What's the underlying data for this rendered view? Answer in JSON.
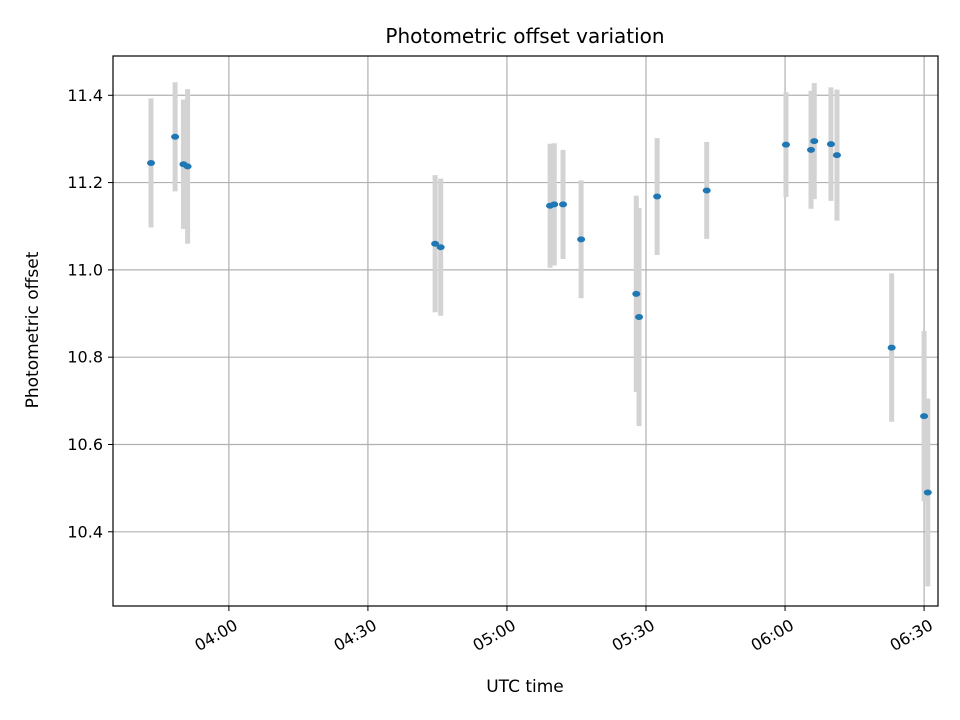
{
  "chart_data": {
    "type": "scatter",
    "title": "Photometric offset variation",
    "xlabel": "UTC time",
    "ylabel": "Photometric offset",
    "x_tick_labels": [
      "04:00",
      "04:30",
      "05:00",
      "05:30",
      "06:00",
      "06:30"
    ],
    "x_tick_minutes": [
      240,
      270,
      300,
      330,
      360,
      390
    ],
    "y_ticks": [
      10.4,
      10.6,
      10.8,
      11.0,
      11.2,
      11.4
    ],
    "xlim_minutes": [
      215,
      393
    ],
    "ylim": [
      10.23,
      11.49
    ],
    "grid": true,
    "marker_color": "#1f77b4",
    "errorbar_color": "#d3d3d3",
    "series": [
      {
        "points": [
          {
            "t": 223.2,
            "y": 11.245,
            "err": 0.148
          },
          {
            "t": 228.4,
            "y": 11.305,
            "err": 0.125
          },
          {
            "t": 230.2,
            "y": 11.242,
            "err": 0.148
          },
          {
            "t": 231.1,
            "y": 11.237,
            "err": 0.177
          },
          {
            "t": 284.5,
            "y": 11.06,
            "err": 0.157
          },
          {
            "t": 285.7,
            "y": 11.052,
            "err": 0.157
          },
          {
            "t": 309.3,
            "y": 11.147,
            "err": 0.142
          },
          {
            "t": 310.2,
            "y": 11.15,
            "err": 0.14
          },
          {
            "t": 312.1,
            "y": 11.15,
            "err": 0.125
          },
          {
            "t": 316.0,
            "y": 11.07,
            "err": 0.135
          },
          {
            "t": 327.9,
            "y": 10.945,
            "err": 0.225
          },
          {
            "t": 328.5,
            "y": 10.892,
            "err": 0.25
          },
          {
            "t": 332.4,
            "y": 11.168,
            "err": 0.134
          },
          {
            "t": 343.1,
            "y": 11.182,
            "err": 0.111
          },
          {
            "t": 360.2,
            "y": 11.287,
            "err": 0.12
          },
          {
            "t": 365.6,
            "y": 11.275,
            "err": 0.135
          },
          {
            "t": 366.3,
            "y": 11.295,
            "err": 0.133
          },
          {
            "t": 369.9,
            "y": 11.288,
            "err": 0.13
          },
          {
            "t": 371.2,
            "y": 11.263,
            "err": 0.15
          },
          {
            "t": 383.0,
            "y": 10.822,
            "err": 0.17
          },
          {
            "t": 390.0,
            "y": 10.665,
            "err": 0.195
          },
          {
            "t": 390.8,
            "y": 10.49,
            "err": 0.215
          }
        ]
      }
    ]
  }
}
